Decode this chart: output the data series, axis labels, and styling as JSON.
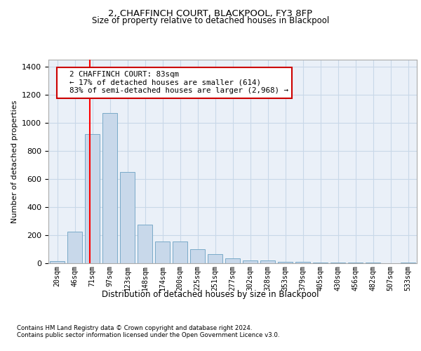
{
  "title": "2, CHAFFINCH COURT, BLACKPOOL, FY3 8FP",
  "subtitle": "Size of property relative to detached houses in Blackpool",
  "xlabel": "Distribution of detached houses by size in Blackpool",
  "ylabel": "Number of detached properties",
  "bar_labels": [
    "20sqm",
    "46sqm",
    "71sqm",
    "97sqm",
    "123sqm",
    "148sqm",
    "174sqm",
    "200sqm",
    "225sqm",
    "251sqm",
    "277sqm",
    "302sqm",
    "328sqm",
    "353sqm",
    "379sqm",
    "405sqm",
    "430sqm",
    "456sqm",
    "482sqm",
    "507sqm",
    "533sqm"
  ],
  "bar_values": [
    15,
    225,
    920,
    1070,
    650,
    275,
    155,
    155,
    100,
    65,
    35,
    20,
    20,
    12,
    12,
    5,
    5,
    3,
    3,
    0,
    3
  ],
  "bar_color": "#c8d8ea",
  "bar_edge_color": "#7aaac8",
  "grid_color": "#c8d8e8",
  "background_color": "#eaf0f8",
  "red_line_x": 1.85,
  "annotation_text": "  2 CHAFFINCH COURT: 83sqm\n  ← 17% of detached houses are smaller (614)\n  83% of semi-detached houses are larger (2,968) →",
  "annotation_box_color": "#ffffff",
  "annotation_border_color": "#cc0000",
  "footnote1": "Contains HM Land Registry data © Crown copyright and database right 2024.",
  "footnote2": "Contains public sector information licensed under the Open Government Licence v3.0.",
  "ylim": [
    0,
    1450
  ],
  "yticks": [
    0,
    200,
    400,
    600,
    800,
    1000,
    1200,
    1400
  ]
}
